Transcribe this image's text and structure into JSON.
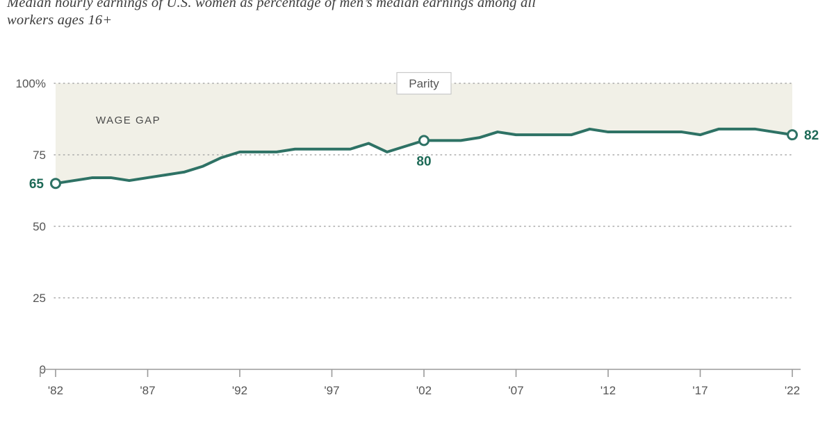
{
  "title": {
    "line1": "Median hourly earnings of U.S. women as percentage of men’s median earnings among all",
    "line2": "workers ages 16+"
  },
  "chart_data": {
    "type": "line",
    "x": [
      1982,
      1983,
      1984,
      1985,
      1986,
      1987,
      1988,
      1989,
      1990,
      1991,
      1992,
      1993,
      1994,
      1995,
      1996,
      1997,
      1998,
      1999,
      2000,
      2001,
      2002,
      2003,
      2004,
      2005,
      2006,
      2007,
      2008,
      2009,
      2010,
      2011,
      2012,
      2013,
      2014,
      2015,
      2016,
      2017,
      2018,
      2019,
      2020,
      2021,
      2022
    ],
    "series": [
      {
        "name": "Women's median hourly earnings as % of men's",
        "values": [
          65,
          66,
          67,
          67,
          66,
          67,
          68,
          69,
          71,
          74,
          76,
          76,
          76,
          77,
          77,
          77,
          77,
          79,
          76,
          78,
          80,
          80,
          80,
          81,
          83,
          82,
          82,
          82,
          82,
          84,
          83,
          83,
          83,
          83,
          83,
          82,
          84,
          84,
          84,
          83,
          82
        ]
      }
    ],
    "ylim": [
      0,
      100
    ],
    "grid": "dotted-horizontal",
    "yticks": [
      {
        "value": 100,
        "label": "100%"
      },
      {
        "value": 75,
        "label": "75"
      },
      {
        "value": 50,
        "label": "50"
      },
      {
        "value": 25,
        "label": "25"
      },
      {
        "value": 0,
        "label": "0"
      }
    ],
    "xticks": [
      {
        "value": 1982,
        "label": "'82"
      },
      {
        "value": 1987,
        "label": "'87"
      },
      {
        "value": 1992,
        "label": "'92"
      },
      {
        "value": 1997,
        "label": "'97"
      },
      {
        "value": 2002,
        "label": "'02"
      },
      {
        "value": 2007,
        "label": "'07"
      },
      {
        "value": 2012,
        "label": "'12"
      },
      {
        "value": 2017,
        "label": "'17"
      },
      {
        "value": 2022,
        "label": "'22"
      }
    ],
    "value_labels": [
      {
        "year": 1982,
        "value": 65,
        "label": "65",
        "position": "left"
      },
      {
        "year": 2002,
        "value": 80,
        "label": "80",
        "position": "below"
      },
      {
        "year": 2022,
        "value": 82,
        "label": "82",
        "position": "right"
      }
    ],
    "markers": [
      {
        "year": 1982,
        "value": 65
      },
      {
        "year": 2002,
        "value": 80
      },
      {
        "year": 2022,
        "value": 82
      }
    ],
    "annotations": {
      "parity_label": "Parity",
      "area_label": "WAGE GAP"
    },
    "colors": {
      "line": "#2e7265",
      "value_label": "#1e6a57",
      "area": "#f1f0e7",
      "axis": "#9a9a9a",
      "gridline": "#a9a9a9",
      "tick_text": "#545454"
    }
  }
}
